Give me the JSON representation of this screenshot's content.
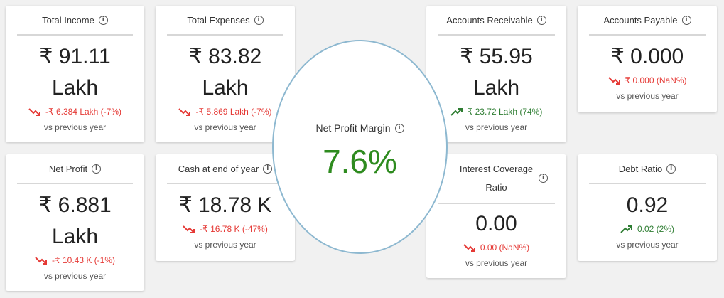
{
  "cards": {
    "total_income": {
      "title": "Total Income",
      "value_line1": "₹ 91.11",
      "value_line2": "Lakh",
      "change": "-₹ 6.384 Lakh (-7%)",
      "trend": "down",
      "previous": "vs previous year"
    },
    "total_expenses": {
      "title": "Total Expenses",
      "value_line1": "₹ 83.82",
      "value_line2": "Lakh",
      "change": "-₹ 5.869 Lakh (-7%)",
      "trend": "down",
      "previous": "vs previous year"
    },
    "accounts_receivable": {
      "title": "Accounts Receivable",
      "value_line1": "₹ 55.95",
      "value_line2": "Lakh",
      "change": "₹ 23.72 Lakh (74%)",
      "trend": "up",
      "previous": "vs previous year"
    },
    "accounts_payable": {
      "title": "Accounts Payable",
      "value_line1": "₹ 0.000",
      "change": "₹ 0.000 (NaN%)",
      "trend": "down",
      "previous": "vs previous year"
    },
    "net_profit": {
      "title": "Net Profit",
      "value_line1": "₹ 6.881",
      "value_line2": "Lakh",
      "change": "-₹ 10.43 K (-1%)",
      "trend": "down",
      "previous": "vs previous year"
    },
    "cash_end_year": {
      "title": "Cash at end of year",
      "value_line1": "₹ 18.78 K",
      "change": "-₹ 16.78 K (-47%)",
      "trend": "down",
      "previous": "vs previous year"
    },
    "interest_coverage": {
      "title_line1": "Interest Coverage",
      "title_line2": "Ratio",
      "value_line1": "0.00",
      "change": "0.00 (NaN%)",
      "trend": "down",
      "previous": "vs previous year"
    },
    "debt_ratio": {
      "title": "Debt Ratio",
      "value_line1": "0.92",
      "change": "0.02 (2%)",
      "trend": "up",
      "previous": "vs previous year"
    }
  },
  "net_profit_margin": {
    "title": "Net Profit Margin",
    "value": "7.6%"
  },
  "icons": {
    "info": "info-circle-icon",
    "down": "trending-down-icon",
    "up": "trending-up-icon"
  },
  "colors": {
    "down": "#e53935",
    "up": "#2e7d32",
    "margin_value": "#2e8b1f",
    "circle_border": "#8db8d0"
  }
}
